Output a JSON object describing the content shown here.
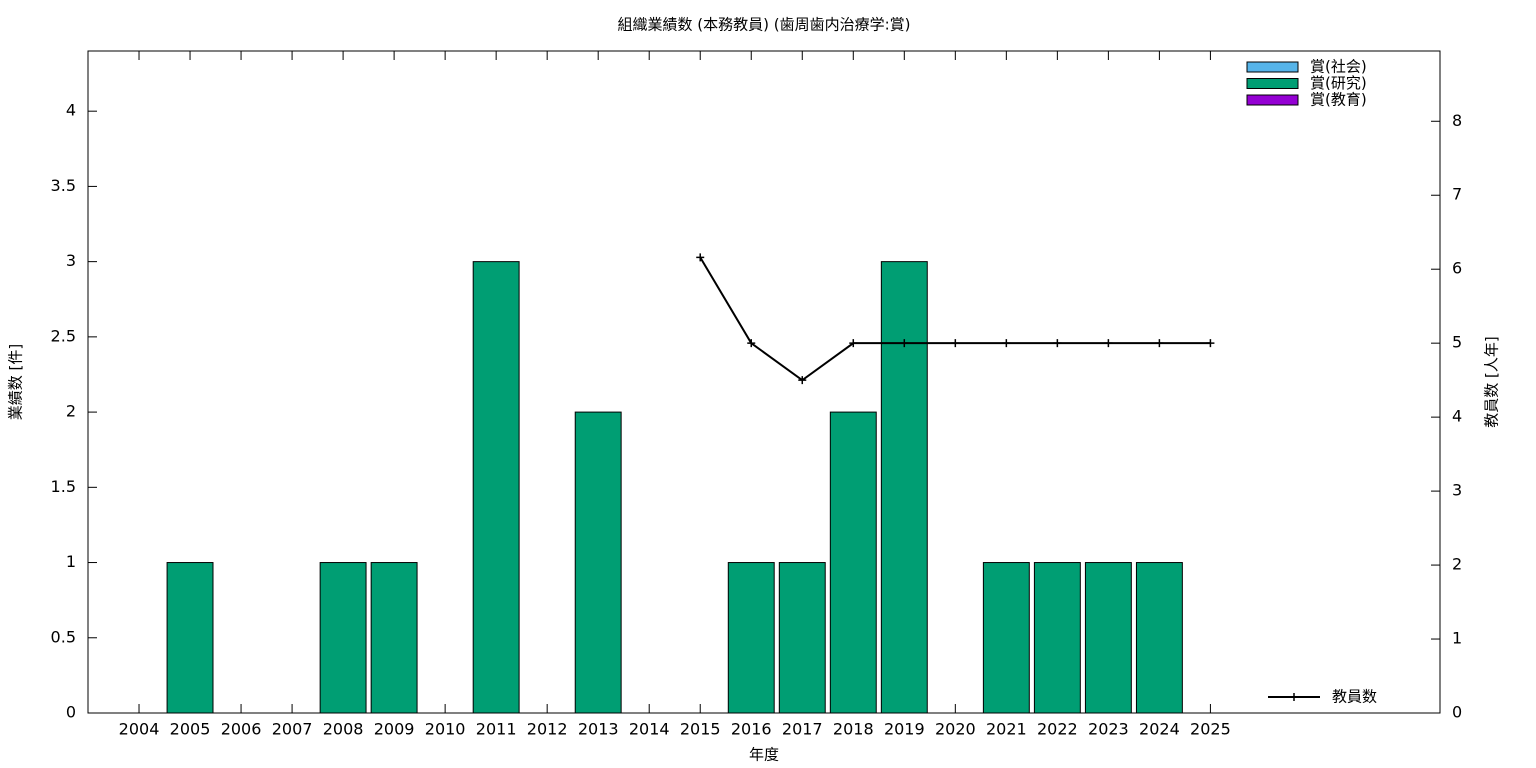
{
  "chart_data": {
    "type": "bar",
    "stacked": true,
    "title": "組織業績数 (本務教員) (歯周歯内治療学:賞)",
    "xlabel": "年度",
    "ylabel": "業績数 [件]",
    "y2label": "教員数 [人年]",
    "x": [
      2004,
      2005,
      2006,
      2007,
      2008,
      2009,
      2010,
      2011,
      2012,
      2013,
      2014,
      2015,
      2016,
      2017,
      2018,
      2019,
      2020,
      2021,
      2022,
      2023,
      2024,
      2025
    ],
    "xlim": [
      2003,
      2029.5
    ],
    "xticks": [
      2004,
      2005,
      2006,
      2007,
      2008,
      2009,
      2010,
      2011,
      2012,
      2013,
      2014,
      2015,
      2016,
      2017,
      2018,
      2019,
      2020,
      2021,
      2022,
      2023,
      2024,
      2025
    ],
    "ylim": [
      0,
      4.4
    ],
    "yticks": [
      0,
      0.5,
      1,
      1.5,
      2,
      2.5,
      3,
      3.5,
      4
    ],
    "y2lim": [
      0,
      8.95
    ],
    "y2ticks": [
      0,
      1,
      2,
      3,
      4,
      5,
      6,
      7,
      8
    ],
    "legend": "top-right",
    "series": [
      {
        "name": "賞(社会)",
        "color": "#56b4e9",
        "values": [
          0,
          0,
          0,
          0,
          0,
          0,
          0,
          0,
          0,
          0,
          0,
          0,
          0,
          0,
          0,
          0,
          0,
          0,
          0,
          0,
          0,
          0
        ]
      },
      {
        "name": "賞(研究)",
        "color": "#009e73",
        "values": [
          0,
          1,
          0,
          0,
          1,
          1,
          0,
          3,
          0,
          2,
          0,
          0,
          1,
          1,
          2,
          3,
          0,
          1,
          1,
          1,
          1,
          0
        ]
      },
      {
        "name": "賞(教育)",
        "color": "#9400d3",
        "values": [
          0,
          0,
          0,
          0,
          0,
          0,
          0,
          0,
          0,
          0,
          0,
          0,
          0,
          0,
          0,
          0,
          0,
          0,
          0,
          0,
          0,
          0
        ]
      },
      {
        "name": "教員数",
        "color": "#000000",
        "type": "line",
        "axis": "y2",
        "values": [
          null,
          null,
          null,
          null,
          null,
          null,
          null,
          null,
          null,
          null,
          null,
          6.16,
          5,
          4.5,
          5,
          5,
          5,
          5,
          5,
          5,
          5,
          5
        ]
      }
    ]
  }
}
